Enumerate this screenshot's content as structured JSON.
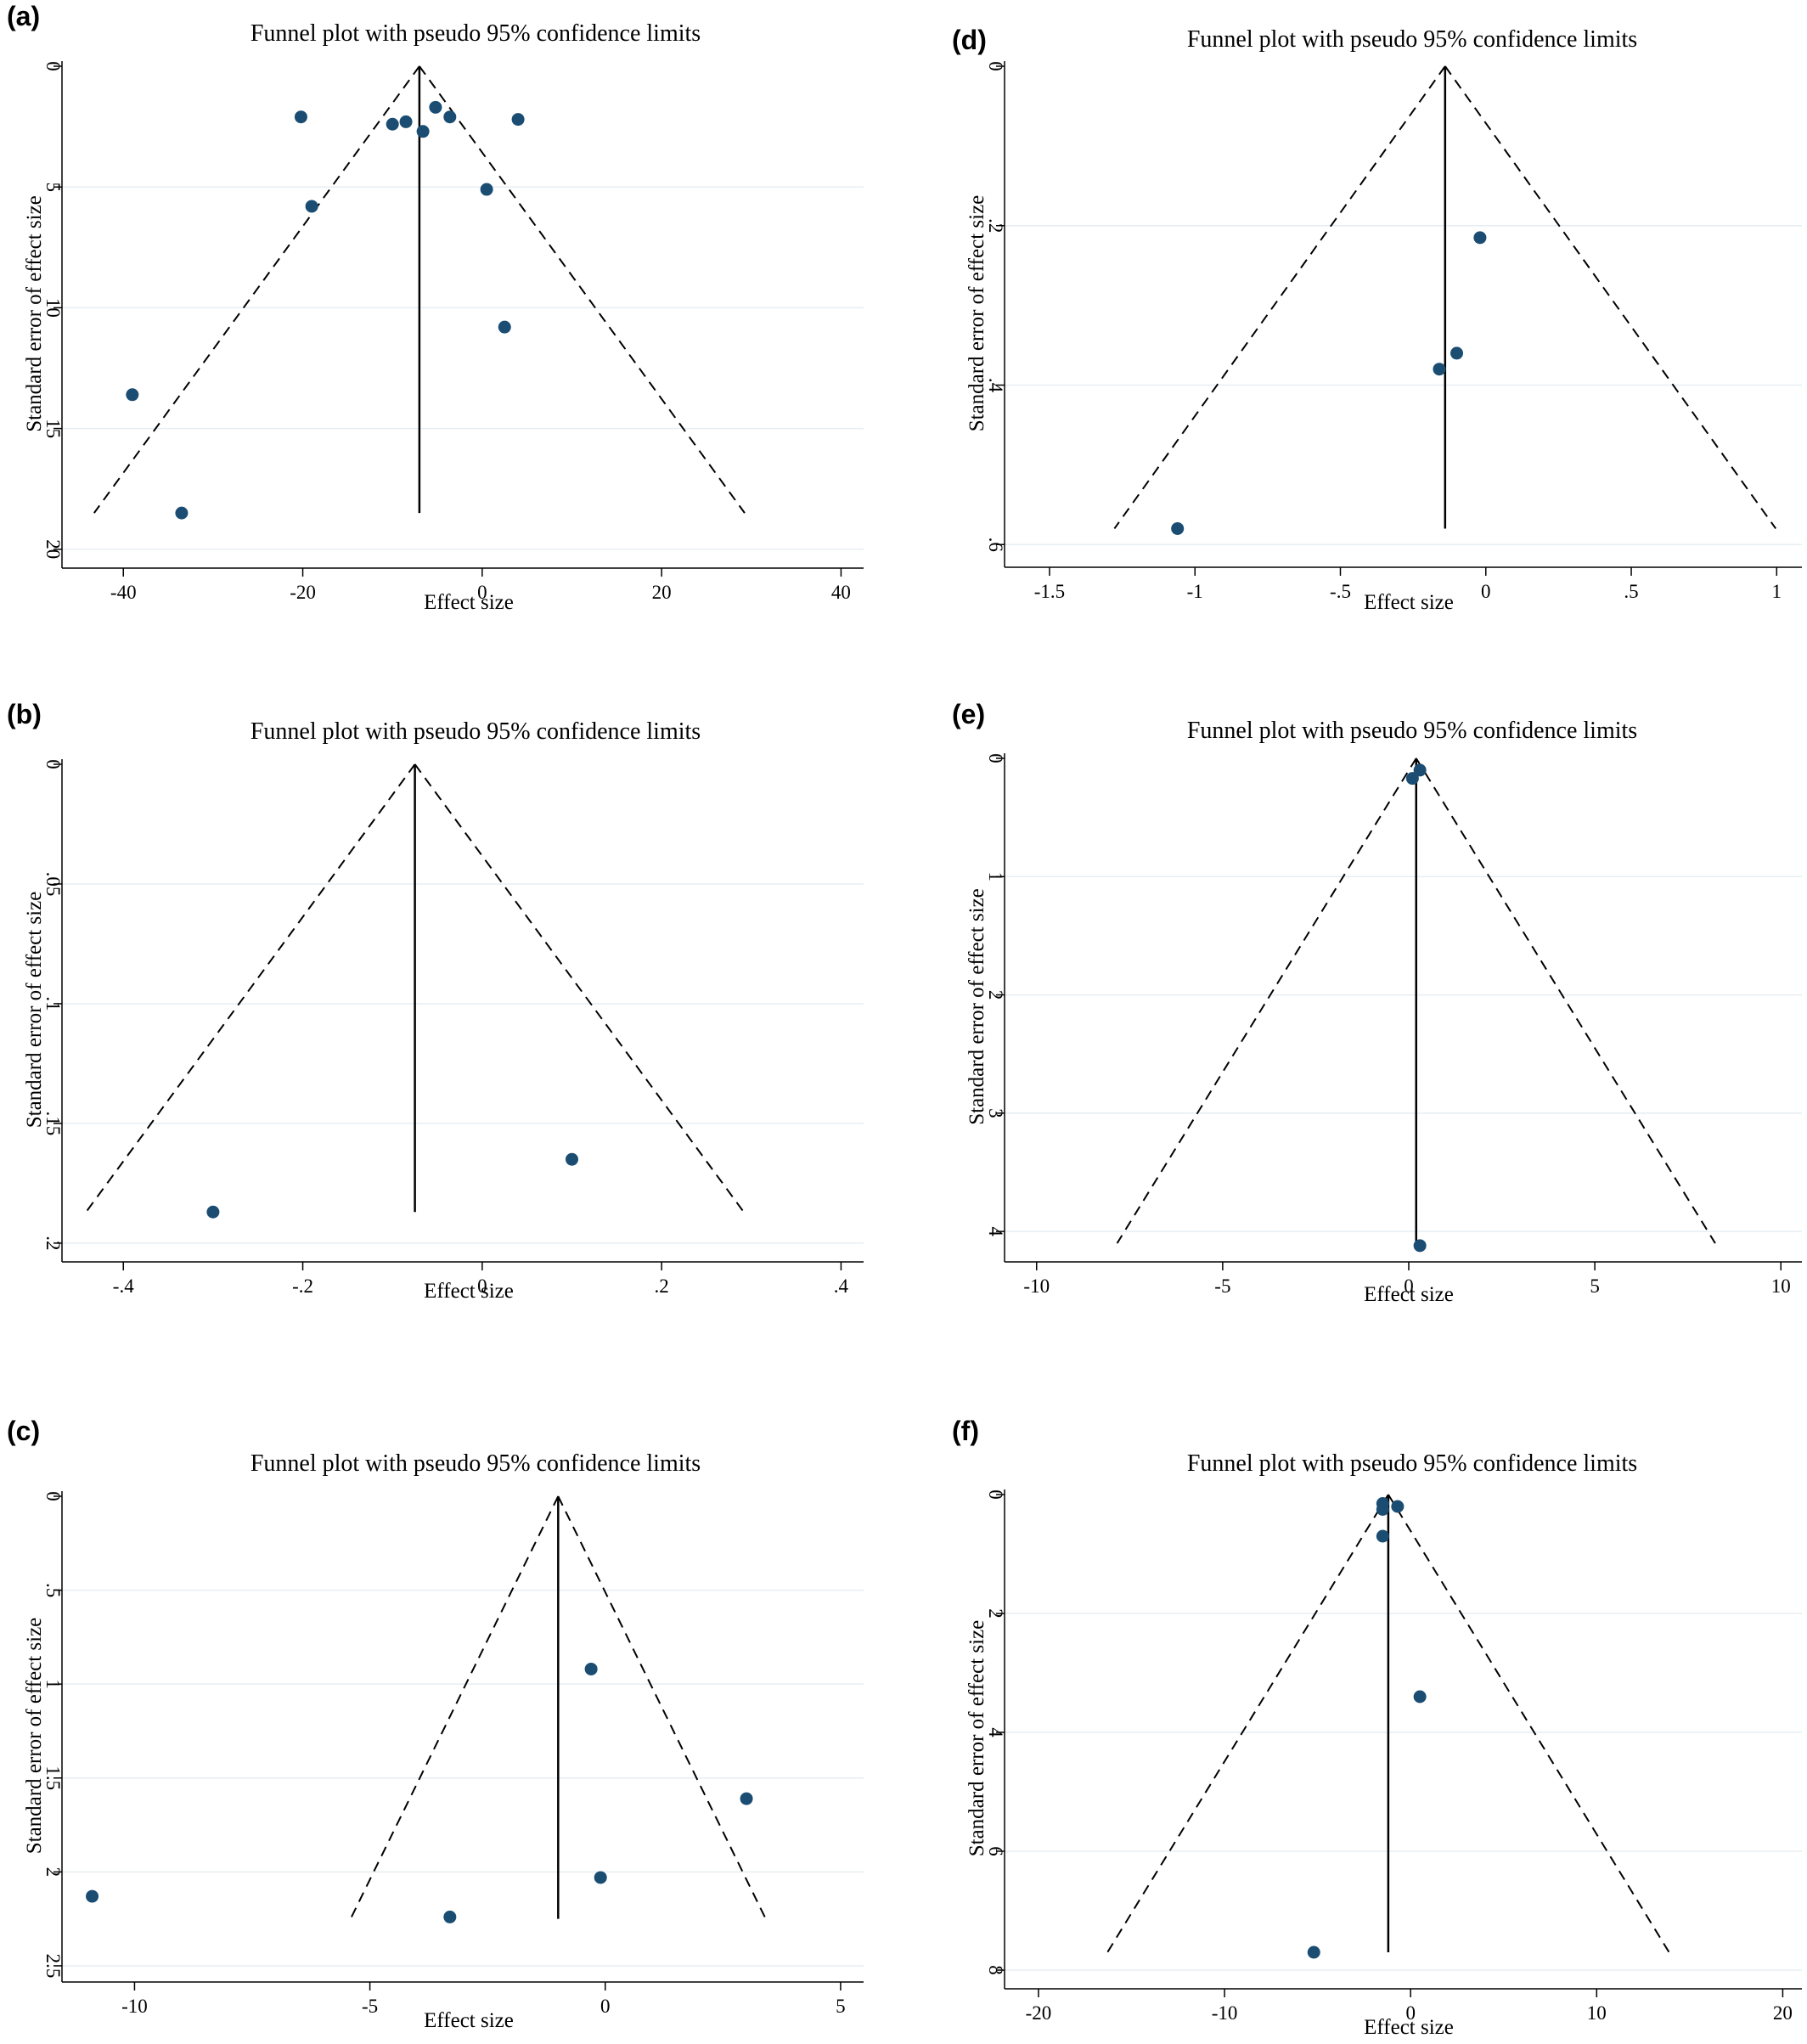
{
  "chart_data": [
    {
      "id": "a",
      "panel_label": "(a)",
      "type": "scatter",
      "title": "Funnel plot with pseudo 95% confidence limits",
      "xlabel": "Effect size",
      "ylabel": "Standard error of effect size",
      "xlim": [
        -44,
        41
      ],
      "ylim": [
        0,
        20.5
      ],
      "y_reversed": true,
      "xticks": [
        -40,
        -20,
        0,
        20,
        40
      ],
      "xtick_labels": [
        "-40",
        "-20",
        "0",
        "20",
        "40"
      ],
      "yticks": [
        0,
        5,
        10,
        15,
        20
      ],
      "ytick_labels": [
        "0",
        "5",
        "10",
        "15",
        "20"
      ],
      "grid": true,
      "pooled_effect": -7,
      "max_se": 18.5,
      "points": [
        {
          "x": -20.2,
          "y": 2.1
        },
        {
          "x": -10,
          "y": 2.4
        },
        {
          "x": -8.5,
          "y": 2.3
        },
        {
          "x": -6.6,
          "y": 2.7
        },
        {
          "x": -5.2,
          "y": 1.7
        },
        {
          "x": -3.6,
          "y": 2.1
        },
        {
          "x": 4,
          "y": 2.2
        },
        {
          "x": -19,
          "y": 5.8
        },
        {
          "x": 0.5,
          "y": 5.1
        },
        {
          "x": 2.5,
          "y": 10.8
        },
        {
          "x": -39,
          "y": 13.6
        },
        {
          "x": -33.5,
          "y": 18.5
        }
      ]
    },
    {
      "id": "b",
      "panel_label": "(b)",
      "type": "scatter",
      "title": "Funnel plot with pseudo 95% confidence limits",
      "xlabel": "Effect size",
      "ylabel": "Standard error of effect size",
      "xlim": [
        -0.44,
        0.41
      ],
      "ylim": [
        0,
        0.205
      ],
      "y_reversed": true,
      "xticks": [
        -0.4,
        -0.2,
        0,
        0.2,
        0.4
      ],
      "xtick_labels": [
        "-.4",
        "-.2",
        "0",
        ".2",
        ".4"
      ],
      "yticks": [
        0,
        0.05,
        0.1,
        0.15,
        0.2
      ],
      "ytick_labels": [
        "0",
        ".05",
        ".1",
        ".15",
        ".2"
      ],
      "grid": true,
      "pooled_effect": -0.075,
      "max_se": 0.187,
      "points": [
        {
          "x": 0.1,
          "y": 0.165
        },
        {
          "x": -0.3,
          "y": 0.187
        }
      ]
    },
    {
      "id": "c",
      "panel_label": "(c)",
      "type": "scatter",
      "title": "Funnel plot with pseudo 95% confidence limits",
      "xlabel": "Effect size",
      "ylabel": "Standard error of effect size",
      "xlim": [
        -11,
        5.2
      ],
      "ylim": [
        0,
        2.55
      ],
      "y_reversed": true,
      "xticks": [
        -10,
        -5,
        0,
        5
      ],
      "xtick_labels": [
        "-10",
        "-5",
        "0",
        "5"
      ],
      "yticks": [
        0,
        0.5,
        1,
        1.5,
        2,
        2.5
      ],
      "ytick_labels": [
        "0",
        ".5",
        "1",
        "1.5",
        "2",
        "2.5"
      ],
      "grid": true,
      "pooled_effect": -1,
      "max_se": 2.25,
      "points": [
        {
          "x": -0.3,
          "y": 0.92
        },
        {
          "x": 3,
          "y": 1.61
        },
        {
          "x": -0.1,
          "y": 2.03
        },
        {
          "x": -3.3,
          "y": 2.24
        },
        {
          "x": -10.9,
          "y": 2.13
        }
      ]
    },
    {
      "id": "d",
      "panel_label": "(d)",
      "type": "scatter",
      "title": "Funnel plot with pseudo 95% confidence limits",
      "xlabel": "Effect size",
      "ylabel": "Standard error of effect size",
      "xlim": [
        -1.57,
        1.04
      ],
      "ylim": [
        0,
        0.62
      ],
      "y_reversed": true,
      "xticks": [
        -1.5,
        -1,
        -0.5,
        0,
        0.5,
        1
      ],
      "xtick_labels": [
        "-1.5",
        "-1",
        "-.5",
        "0",
        ".5",
        "1"
      ],
      "yticks": [
        0,
        0.2,
        0.4,
        0.6
      ],
      "ytick_labels": [
        "0",
        ".2",
        ".4",
        ".6"
      ],
      "grid": true,
      "pooled_effect": -0.14,
      "max_se": 0.58,
      "points": [
        {
          "x": -0.02,
          "y": 0.215
        },
        {
          "x": -0.1,
          "y": 0.36
        },
        {
          "x": -0.16,
          "y": 0.38
        },
        {
          "x": -1.06,
          "y": 0.58
        }
      ]
    },
    {
      "id": "e",
      "panel_label": "(e)",
      "type": "scatter",
      "title": "Funnel plot with pseudo 95% confidence limits",
      "xlabel": "Effect size",
      "ylabel": "Standard error of effect size",
      "xlim": [
        -10.2,
        10.2
      ],
      "ylim": [
        0,
        4.2
      ],
      "y_reversed": true,
      "xticks": [
        -10,
        -5,
        0,
        5,
        10
      ],
      "xtick_labels": [
        "-10",
        "-5",
        "0",
        "5",
        "10"
      ],
      "yticks": [
        0,
        1,
        2,
        3,
        4
      ],
      "ytick_labels": [
        "0",
        "1",
        "2",
        "3",
        "4"
      ],
      "grid": true,
      "pooled_effect": 0.2,
      "max_se": 4.1,
      "points": [
        {
          "x": 0.3,
          "y": 0.1
        },
        {
          "x": 0.1,
          "y": 0.17
        },
        {
          "x": 0.3,
          "y": 4.12
        }
      ]
    },
    {
      "id": "f",
      "panel_label": "(f)",
      "type": "scatter",
      "title": "Funnel plot with pseudo 95% confidence limits",
      "xlabel": "Effect size",
      "ylabel": "Standard error of effect size",
      "xlim": [
        -20.5,
        20.3
      ],
      "ylim": [
        0,
        8.2
      ],
      "y_reversed": true,
      "xticks": [
        -20,
        -10,
        0,
        10,
        20
      ],
      "xtick_labels": [
        "-20",
        "-10",
        "0",
        "10",
        "20"
      ],
      "yticks": [
        0,
        2,
        4,
        6,
        8
      ],
      "ytick_labels": [
        "0",
        "2",
        "4",
        "6",
        "8"
      ],
      "grid": true,
      "pooled_effect": -1.2,
      "max_se": 7.7,
      "points": [
        {
          "x": -1.5,
          "y": 0.15
        },
        {
          "x": -0.7,
          "y": 0.2
        },
        {
          "x": -1.5,
          "y": 0.25
        },
        {
          "x": -1.5,
          "y": 0.7
        },
        {
          "x": 0.5,
          "y": 3.4
        },
        {
          "x": -5.2,
          "y": 7.7
        }
      ]
    }
  ]
}
